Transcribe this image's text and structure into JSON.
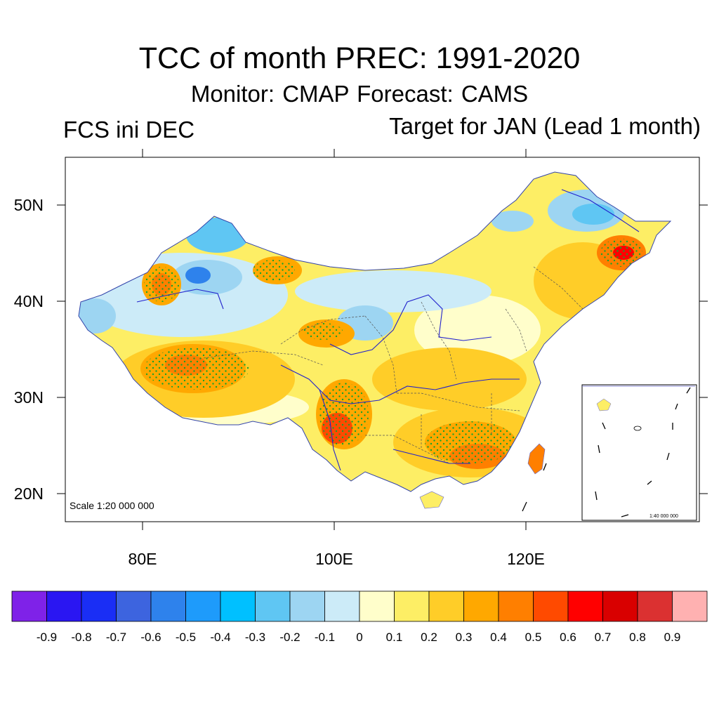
{
  "title": "TCC of month PREC: 1991-2020",
  "subtitle": "Monitor: CMAP   Forecast: CAMS",
  "left_label": "FCS ini DEC",
  "right_label": "Target for JAN (Lead 1 month)",
  "map": {
    "lat_labels": [
      "50N",
      "40N",
      "30N",
      "20N"
    ],
    "lon_labels": [
      "80E",
      "100E",
      "120E"
    ],
    "scale_label": "Scale 1:20 000 000",
    "inset_scale_label": "1:40 000 000",
    "stippling_meaning": "significant correlation",
    "field_regions": [
      {
        "region": "western Xinjiang",
        "value": 0.5
      },
      {
        "region": "northwest Tibet",
        "value": 0.45
      },
      {
        "region": "southwest Sichuan / Yunnan",
        "value": 0.6
      },
      {
        "region": "south China",
        "value": 0.5
      },
      {
        "region": "Taiwan",
        "value": 0.55
      },
      {
        "region": "eastern Heilongjiang",
        "value": 0.7
      },
      {
        "region": "northern Xinjiang basin",
        "value": -0.5
      },
      {
        "region": "northern Heilongjiang",
        "value": -0.4
      },
      {
        "region": "Inner Mongolia",
        "value": -0.1
      }
    ]
  },
  "colorbar": {
    "colors": [
      "#7f22e8",
      "#2a16f2",
      "#1a2ef5",
      "#3d64df",
      "#2e82ec",
      "#1e9bfb",
      "#00c0ff",
      "#5fc6f3",
      "#9dd5f2",
      "#ccebf8",
      "#fffecb",
      "#fdee65",
      "#ffcd28",
      "#ffa800",
      "#ff7f00",
      "#ff4a00",
      "#ff0000",
      "#d90000",
      "#db3131",
      "#ffb1b1"
    ],
    "tick_labels": [
      "-0.9",
      "-0.8",
      "-0.7",
      "-0.6",
      "-0.5",
      "-0.4",
      "-0.3",
      "-0.2",
      "-0.1",
      "0",
      "0.1",
      "0.2",
      "0.3",
      "0.4",
      "0.5",
      "0.6",
      "0.7",
      "0.8",
      "0.9"
    ]
  }
}
